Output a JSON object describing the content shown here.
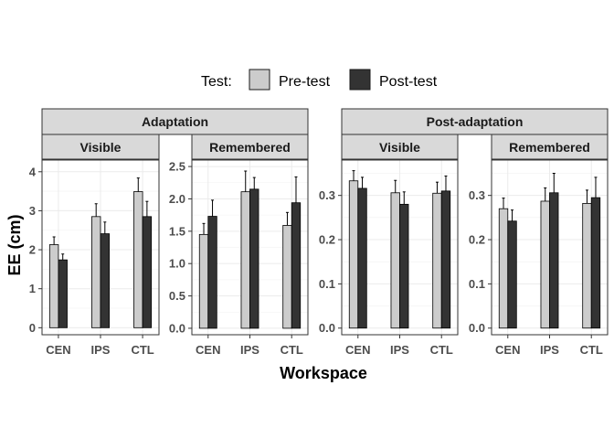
{
  "chart_data": {
    "type": "bar",
    "xlabel": "Workspace",
    "ylabel": "EE (cm)",
    "legend": {
      "title": "Test:",
      "position": "top",
      "entries": [
        {
          "name": "Pre-test",
          "color": "#cccccc"
        },
        {
          "name": "Post-test",
          "color": "#333333"
        }
      ]
    },
    "grid": true,
    "categories": [
      "CEN",
      "IPS",
      "CTL"
    ],
    "groups": [
      {
        "label": "Adaptation",
        "panels": [
          {
            "label": "Visible",
            "ylim": [
              -0.18,
              4.3
            ],
            "yticks": [
              0,
              1,
              2,
              3,
              4
            ],
            "tick_labels": [
              "0",
              "1",
              "2",
              "3",
              "4"
            ],
            "series": [
              {
                "name": "Pre-test",
                "values": [
                  2.13,
                  2.85,
                  3.49
                ],
                "errors": [
                  0.2,
                  0.33,
                  0.35
                ]
              },
              {
                "name": "Post-test",
                "values": [
                  1.74,
                  2.41,
                  2.85
                ],
                "errors": [
                  0.15,
                  0.3,
                  0.39
                ]
              }
            ]
          },
          {
            "label": "Remembered",
            "ylim": [
              -0.1,
              2.6
            ],
            "yticks": [
              0,
              0.5,
              1,
              1.5,
              2,
              2.5
            ],
            "tick_labels": [
              "0.0",
              "0.5",
              "1.0",
              "1.5",
              "2.0",
              "2.5"
            ],
            "series": [
              {
                "name": "Pre-test",
                "values": [
                  1.45,
                  2.11,
                  1.59
                ],
                "errors": [
                  0.17,
                  0.32,
                  0.2
                ]
              },
              {
                "name": "Post-test",
                "values": [
                  1.73,
                  2.15,
                  1.94
                ],
                "errors": [
                  0.25,
                  0.18,
                  0.4
                ]
              }
            ]
          }
        ]
      },
      {
        "label": "Post-adaptation",
        "panels": [
          {
            "label": "Visible",
            "ylim": [
              -0.015,
              0.38
            ],
            "yticks": [
              0,
              0.1,
              0.2,
              0.3
            ],
            "tick_labels": [
              "0.0",
              "0.1",
              "0.2",
              "0.3"
            ],
            "series": [
              {
                "name": "Pre-test",
                "values": [
                  0.333,
                  0.306,
                  0.305
                ],
                "errors": [
                  0.023,
                  0.028,
                  0.025
                ]
              },
              {
                "name": "Post-test",
                "values": [
                  0.316,
                  0.28,
                  0.31
                ],
                "errors": [
                  0.025,
                  0.028,
                  0.034
                ]
              }
            ]
          },
          {
            "label": "Remembered",
            "ylim": [
              -0.015,
              0.38
            ],
            "yticks": [
              0,
              0.1,
              0.2,
              0.3
            ],
            "tick_labels": [
              "0.0",
              "0.1",
              "0.2",
              "0.3"
            ],
            "series": [
              {
                "name": "Pre-test",
                "values": [
                  0.27,
                  0.287,
                  0.282
                ],
                "errors": [
                  0.024,
                  0.03,
                  0.03
                ]
              },
              {
                "name": "Post-test",
                "values": [
                  0.242,
                  0.306,
                  0.295
                ],
                "errors": [
                  0.025,
                  0.044,
                  0.046
                ]
              }
            ]
          }
        ]
      }
    ]
  }
}
